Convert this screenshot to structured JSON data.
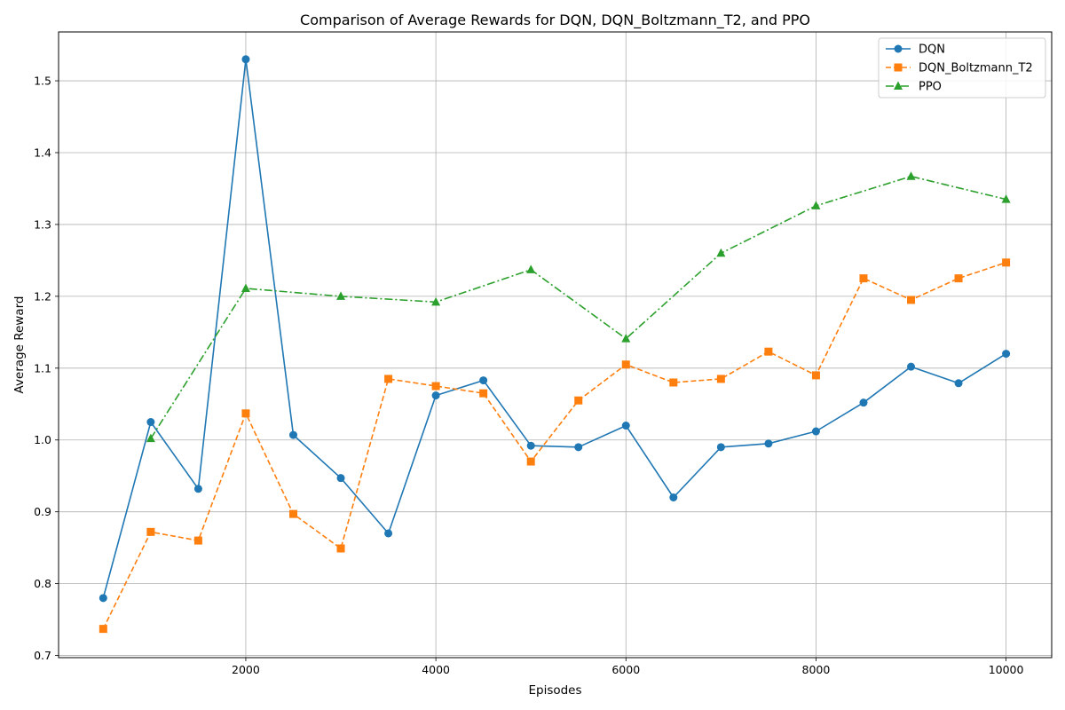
{
  "chart_data": {
    "type": "line",
    "title": "Comparison of Average Rewards for DQN, DQN_Boltzmann_T2, and PPO",
    "xlabel": "Episodes",
    "ylabel": "Average Reward",
    "xlim": [
      30,
      10480
    ],
    "ylim": [
      0.697,
      1.568
    ],
    "xticks": [
      2000,
      4000,
      6000,
      8000,
      10000
    ],
    "xtick_labels": [
      "2000",
      "4000",
      "6000",
      "8000",
      "10000"
    ],
    "yticks": [
      0.7,
      0.8,
      0.9,
      1.0,
      1.1,
      1.2,
      1.3,
      1.4,
      1.5
    ],
    "ytick_labels": [
      "0.7",
      "0.8",
      "0.9",
      "1.0",
      "1.1",
      "1.2",
      "1.3",
      "1.4",
      "1.5"
    ],
    "grid": true,
    "legend_position": "top-right",
    "series": [
      {
        "name": "DQN",
        "color": "#1f77b4",
        "linestyle": "solid",
        "marker": "circle",
        "x": [
          500,
          1000,
          1500,
          2000,
          2500,
          3000,
          3500,
          4000,
          4500,
          5000,
          5500,
          6000,
          6500,
          7000,
          7500,
          8000,
          8500,
          9000,
          9500,
          10000
        ],
        "values": [
          0.78,
          1.025,
          0.932,
          1.53,
          1.007,
          0.947,
          0.87,
          1.062,
          1.083,
          0.992,
          0.99,
          1.02,
          0.92,
          0.99,
          0.995,
          1.012,
          1.052,
          1.102,
          1.079,
          1.12
        ]
      },
      {
        "name": "DQN_Boltzmann_T2",
        "color": "#ff7f0e",
        "linestyle": "dashed",
        "marker": "square",
        "x": [
          500,
          1000,
          1500,
          2000,
          2500,
          3000,
          3500,
          4000,
          4500,
          5000,
          5500,
          6000,
          6500,
          7000,
          7500,
          8000,
          8500,
          9000,
          9500,
          10000
        ],
        "values": [
          0.737,
          0.872,
          0.86,
          1.037,
          0.897,
          0.849,
          1.085,
          1.075,
          1.065,
          0.97,
          1.055,
          1.105,
          1.08,
          1.085,
          1.123,
          1.09,
          1.225,
          1.195,
          1.225,
          1.247
        ]
      },
      {
        "name": "PPO",
        "color": "#2ca02c",
        "linestyle": "dashdot",
        "marker": "triangle",
        "x": [
          1000,
          2000,
          3000,
          4000,
          5000,
          6000,
          7000,
          8000,
          9000,
          10000
        ],
        "values": [
          1.002,
          1.211,
          1.2,
          1.192,
          1.237,
          1.141,
          1.26,
          1.326,
          1.367,
          1.335
        ]
      }
    ]
  }
}
